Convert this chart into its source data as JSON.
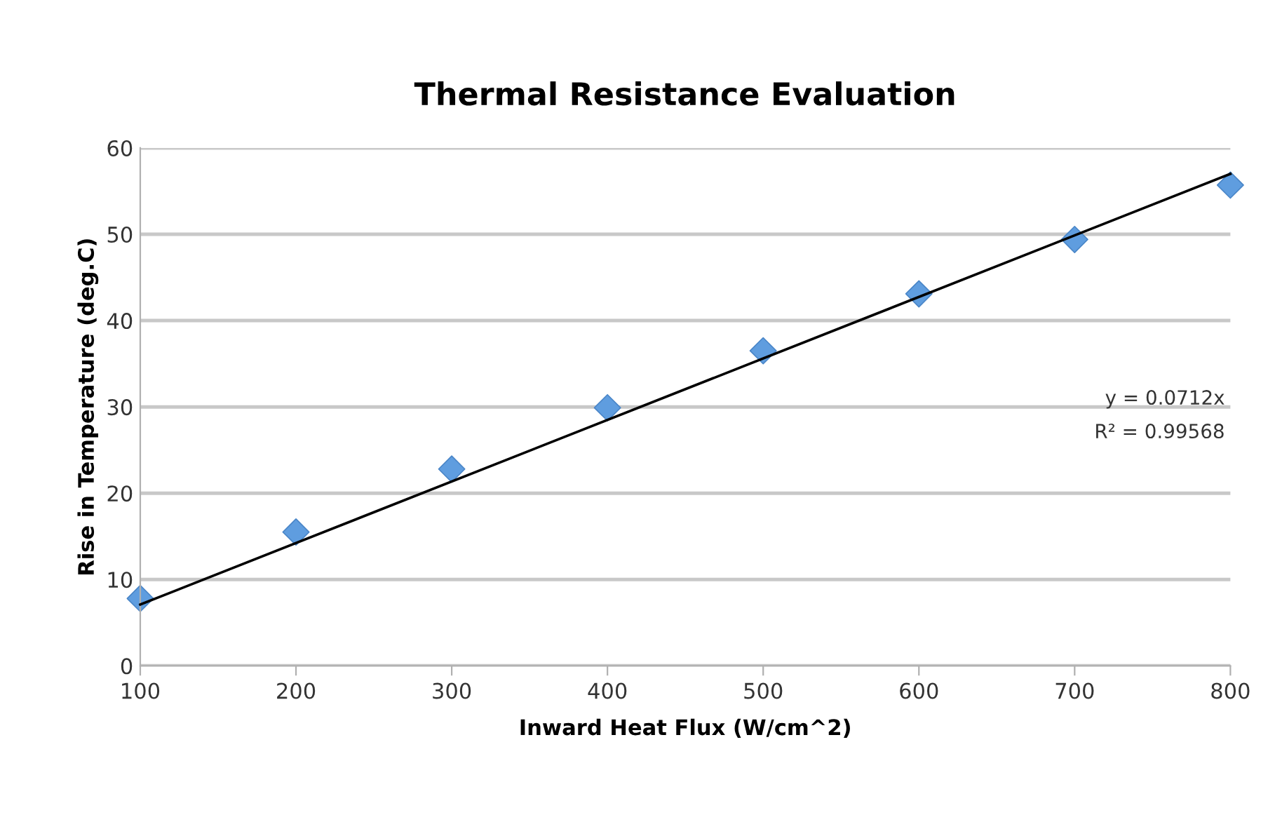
{
  "chart_data": {
    "type": "scatter",
    "title": "Thermal Resistance Evaluation",
    "xlabel": "Inward Heat Flux (W/cm^2)",
    "ylabel": "Rise in Temperature (deg.C)",
    "x": [
      100,
      200,
      300,
      400,
      500,
      600,
      700,
      800
    ],
    "series": [
      {
        "color": "#5f9ddf",
        "values": [
          7.8,
          15.5,
          22.8,
          29.9,
          36.5,
          43.1,
          49.4,
          55.7
        ],
        "marker": "diamond"
      },
      {
        "type": "line",
        "color": "#000000",
        "x": [
          100,
          800
        ],
        "values": [
          7.1,
          57.0
        ],
        "marker": "none",
        "line_style": "solid"
      }
    ],
    "annotations": [
      "y = 0.0712x",
      "R² = 0.99568"
    ],
    "xlim": [
      100,
      800
    ],
    "ylim": [
      0,
      60
    ],
    "xticks": [
      100,
      200,
      300,
      400,
      500,
      600,
      700,
      800
    ],
    "yticks": [
      0,
      10,
      20,
      30,
      40,
      50,
      60
    ],
    "grid": "y",
    "legend": false
  }
}
